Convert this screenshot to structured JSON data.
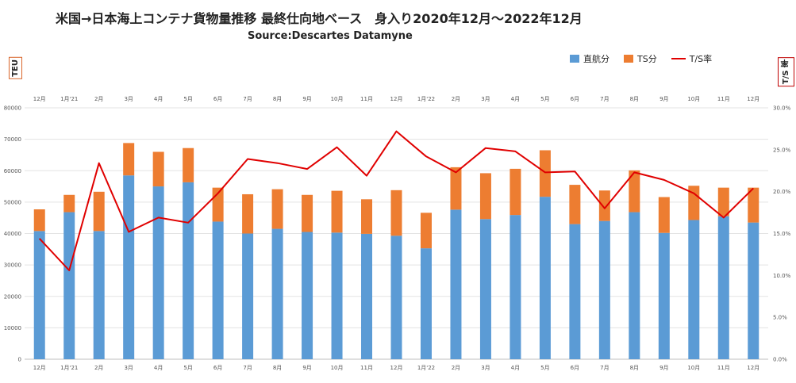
{
  "title": "米国→日本海上コンテナ貨物量推移  最終仕向地ベース　身入り2020年12月～2022年12月",
  "subtitle": "Source:Descartes Datamyne",
  "y_left_label": "TEU",
  "y_right_label": "T/S 率",
  "colors": {
    "direct": "#5b9bd5",
    "ts": "#ed7d31",
    "rate": "#e00000"
  },
  "chart_data": {
    "type": "bar",
    "categories": [
      "12月",
      "1月'21",
      "2月",
      "3月",
      "4月",
      "5月",
      "6月",
      "7月",
      "8月",
      "9月",
      "10月",
      "11月",
      "12月",
      "1月'22",
      "2月",
      "3月",
      "4月",
      "5月",
      "6月",
      "7月",
      "8月",
      "9月",
      "10月",
      "11月",
      "12月"
    ],
    "series": [
      {
        "name": "直航分",
        "type": "bar",
        "stack": "teu",
        "values": [
          40800,
          46800,
          40800,
          58500,
          55000,
          56300,
          43800,
          40000,
          41500,
          40500,
          40300,
          39900,
          39300,
          35300,
          47600,
          44600,
          45900,
          51700,
          43000,
          44000,
          46800,
          40200,
          44300,
          45500,
          43500
        ]
      },
      {
        "name": "TS分",
        "type": "bar",
        "stack": "teu",
        "values": [
          6900,
          5500,
          12500,
          10300,
          11000,
          10900,
          10800,
          12500,
          12600,
          11800,
          13300,
          11000,
          14500,
          11300,
          13500,
          14600,
          14700,
          14800,
          12500,
          9700,
          13300,
          11400,
          10900,
          9100,
          11100
        ]
      },
      {
        "name": "T/S率",
        "type": "line",
        "axis": "right",
        "values": [
          14.4,
          10.6,
          23.4,
          15.2,
          16.9,
          16.3,
          19.8,
          23.9,
          23.4,
          22.7,
          25.3,
          21.9,
          27.2,
          24.2,
          22.3,
          25.2,
          24.8,
          22.3,
          22.4,
          18.0,
          22.3,
          21.4,
          19.8,
          16.9,
          20.4
        ]
      }
    ],
    "ylim_left": [
      0,
      80000
    ],
    "left_ticks": [
      "0",
      "10000",
      "20000",
      "30000",
      "40000",
      "50000",
      "60000",
      "70000",
      "80000"
    ],
    "ylim_right": [
      0,
      30
    ],
    "right_ticks": [
      "0.0%",
      "5.0%",
      "10.0%",
      "15.0%",
      "20.0%",
      "25.0%",
      "30.0%"
    ],
    "grid": true,
    "legend_position": "top-right"
  }
}
